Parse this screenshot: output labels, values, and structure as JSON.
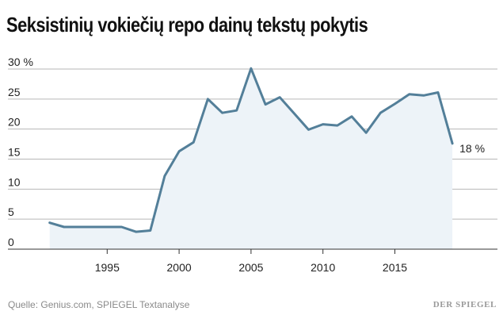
{
  "header": {
    "title": "Seksistinių vokiečių repo dainų tekstų pokytis"
  },
  "footer": {
    "source": "Quelle: Genius.com, SPIEGEL Textanalyse",
    "brand": "DER SPIEGEL"
  },
  "colors": {
    "line": "#537f99",
    "area": "#edf3f8",
    "grid": "#b7b7b7",
    "axis": "#333333"
  },
  "chart_data": {
    "type": "area",
    "title": "Seksistinių vokiečių repo dainų tekstų pokytis",
    "xlabel": "",
    "ylabel": "",
    "xlim": [
      1990,
      2019
    ],
    "ylim": [
      0,
      30
    ],
    "x_ticks": [
      1995,
      2000,
      2005,
      2010,
      2015
    ],
    "y_ticks": [
      0,
      5,
      10,
      15,
      20,
      25,
      30
    ],
    "y_tick_labels": [
      "0",
      "5",
      "10",
      "15",
      "20",
      "25",
      "30 %"
    ],
    "grid": true,
    "end_label": "18 %",
    "x": [
      1991,
      1992,
      1993,
      1994,
      1995,
      1996,
      1997,
      1998,
      1999,
      2000,
      2001,
      2002,
      2003,
      2004,
      2005,
      2006,
      2007,
      2008,
      2009,
      2010,
      2011,
      2012,
      2013,
      2014,
      2015,
      2016,
      2017,
      2018,
      2019
    ],
    "values": [
      4.4,
      3.7,
      3.7,
      3.7,
      3.7,
      3.7,
      2.9,
      3.1,
      12.2,
      16.3,
      17.8,
      25.0,
      22.7,
      23.1,
      30.1,
      24.1,
      25.3,
      22.6,
      19.9,
      20.8,
      20.6,
      22.1,
      19.4,
      22.7,
      24.2,
      25.8,
      25.6,
      26.1,
      17.6
    ]
  }
}
